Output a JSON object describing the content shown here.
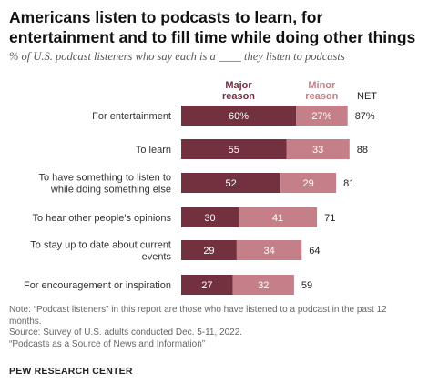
{
  "header": {
    "title": "Americans listen to podcasts to learn, for entertainment and to fill time while doing other things",
    "subtitle": "% of U.S. podcast listeners who say each is a ____ they listen to podcasts"
  },
  "colors": {
    "major": "#73303f",
    "minor": "#c47f88",
    "major_label": "#73303f",
    "minor_label": "#c47f88"
  },
  "chart_data": {
    "type": "bar",
    "orientation": "horizontal",
    "stacked": true,
    "categories": [
      "For entertainment",
      "To learn",
      "To have something to listen to while doing something else",
      "To hear other people's opinions",
      "To stay up to date about current events",
      "For encouragement or inspiration"
    ],
    "category_lines": [
      [
        "For entertainment"
      ],
      [
        "To learn"
      ],
      [
        "To have something to listen to",
        "while doing something else"
      ],
      [
        "To hear other people's opinions"
      ],
      [
        "To stay up to date about current",
        "events"
      ],
      [
        "For encouragement or inspiration"
      ]
    ],
    "series": [
      {
        "name": "Major reason",
        "label_lines": [
          "Major",
          "reason"
        ],
        "values": [
          60,
          55,
          52,
          30,
          29,
          27
        ]
      },
      {
        "name": "Minor reason",
        "label_lines": [
          "Minor",
          "reason"
        ],
        "values": [
          27,
          33,
          29,
          41,
          34,
          32
        ]
      }
    ],
    "data_labels": [
      [
        "60%",
        "55",
        "52",
        "30",
        "29",
        "27"
      ],
      [
        "27%",
        "33",
        "29",
        "41",
        "34",
        "32"
      ]
    ],
    "net": {
      "header": "NET",
      "labels": [
        "87%",
        "88",
        "81",
        "71",
        "64",
        "59"
      ],
      "values": [
        87,
        88,
        81,
        71,
        64,
        59
      ]
    },
    "xlim": [
      0,
      100
    ]
  },
  "notes": {
    "note": "Note: “Podcast listeners” in this report are those who have listened to a podcast in the past 12 months.",
    "source": "Source: Survey of U.S. adults conducted Dec. 5-11, 2022.",
    "report": "“Podcasts as a Source of News and Information”",
    "org": "PEW RESEARCH CENTER"
  }
}
